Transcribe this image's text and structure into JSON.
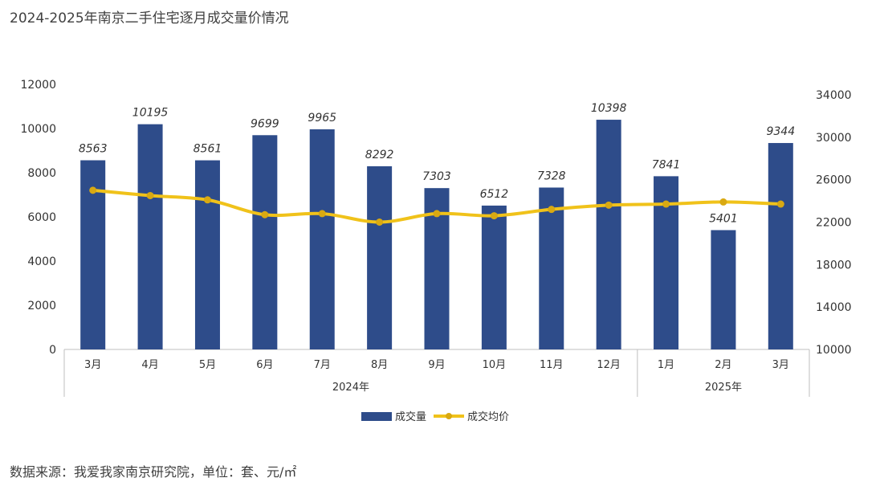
{
  "title": "2024-2025年南京二手住宅逐月成交量价情况",
  "source": "数据来源：我爱我家南京研究院，单位：套、元/㎡",
  "colors": {
    "bar": "#2e4c8a",
    "line": "#f0c21a",
    "marker": "#d9a912",
    "axis": "#bfbfbf"
  },
  "chart_data": {
    "type": "bar",
    "categories": [
      "3月",
      "4月",
      "5月",
      "6月",
      "7月",
      "8月",
      "9月",
      "10月",
      "11月",
      "12月",
      "1月",
      "2月",
      "3月"
    ],
    "year_groups": [
      {
        "label": "2024年",
        "start": 0,
        "end": 9
      },
      {
        "label": "2025年",
        "start": 10,
        "end": 12
      }
    ],
    "series": [
      {
        "name": "成交量",
        "type": "bar",
        "axis": "left",
        "values": [
          8563,
          10195,
          8561,
          9699,
          9965,
          8292,
          7303,
          6512,
          7328,
          10398,
          7841,
          5401,
          9344
        ]
      },
      {
        "name": "成交均价",
        "type": "line",
        "axis": "right",
        "values": [
          25000,
          24500,
          24100,
          22700,
          22800,
          22000,
          22800,
          22600,
          23200,
          23600,
          23700,
          23900,
          23700
        ]
      }
    ],
    "left_axis": {
      "min": 0,
      "max": 12000,
      "step": 2000
    },
    "right_axis": {
      "min": 10000,
      "max": 34000,
      "step": 4000
    },
    "left_ticks": [
      "0",
      "2000",
      "4000",
      "6000",
      "8000",
      "10000",
      "12000"
    ],
    "right_ticks": [
      "10000",
      "14000",
      "18000",
      "22000",
      "26000",
      "30000",
      "34000"
    ],
    "data_labels": [
      "8563",
      "10195",
      "8561",
      "9699",
      "9965",
      "8292",
      "7303",
      "6512",
      "7328",
      "10398",
      "7841",
      "5401",
      "9344"
    ],
    "legend": [
      "成交量",
      "成交均价"
    ]
  }
}
